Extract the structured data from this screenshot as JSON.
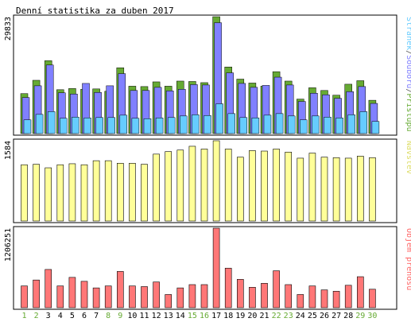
{
  "chart_data": [
    {
      "type": "bar",
      "title": "Denní statistika za duben 2017",
      "ymax_label": "29833",
      "legend": [
        {
          "text": "Stránek",
          "color": "#66ccff"
        },
        {
          "text": "/",
          "color": "#555555"
        },
        {
          "text": "Souborů",
          "color": "#8080ff"
        },
        {
          "text": "/",
          "color": "#555555"
        },
        {
          "text": "Přístupů",
          "color": "#66aa33"
        }
      ],
      "categories": [
        "1",
        "2",
        "3",
        "4",
        "5",
        "6",
        "7",
        "8",
        "9",
        "10",
        "11",
        "12",
        "13",
        "14",
        "15",
        "16",
        "17",
        "18",
        "19",
        "20",
        "21",
        "22",
        "23",
        "24",
        "25",
        "26",
        "27",
        "28",
        "29",
        "30"
      ],
      "weekend_days": [
        "1",
        "2",
        "8",
        "9",
        "15",
        "16",
        "22",
        "23",
        "29",
        "30"
      ],
      "ylim": [
        0,
        29833
      ],
      "series": [
        {
          "name": "Přístupů",
          "color": "#66aa33",
          "values": [
            10200,
            13600,
            18600,
            11200,
            11500,
            11300,
            11400,
            10800,
            16800,
            12100,
            12000,
            13200,
            12100,
            13400,
            13300,
            13000,
            29833,
            17000,
            13900,
            12900,
            12100,
            15800,
            13400,
            8800,
            11700,
            11000,
            9800,
            12600,
            13500,
            8500
          ]
        },
        {
          "name": "Souborů",
          "color": "#8080ff",
          "values": [
            9200,
            12200,
            17500,
            10400,
            10100,
            12800,
            10500,
            12200,
            15300,
            11000,
            11000,
            11800,
            10900,
            11300,
            12500,
            12400,
            28300,
            15500,
            12800,
            11800,
            12300,
            14400,
            12400,
            8200,
            10300,
            9900,
            9000,
            10700,
            12000,
            7700
          ]
        },
        {
          "name": "Stránek",
          "color": "#66ccff",
          "values": [
            3500,
            4900,
            5600,
            3900,
            4200,
            4000,
            4100,
            4100,
            4700,
            3900,
            3800,
            4000,
            4100,
            4500,
            4800,
            4600,
            7600,
            5100,
            4100,
            4000,
            4700,
            5100,
            4500,
            3500,
            4500,
            4200,
            4000,
            4800,
            5600,
            3100
          ]
        }
      ]
    },
    {
      "type": "bar",
      "ymax_label": "1584",
      "legend": [
        {
          "text": "Návštěv",
          "color": "#dddd66"
        }
      ],
      "categories": [
        "1",
        "2",
        "3",
        "4",
        "5",
        "6",
        "7",
        "8",
        "9",
        "10",
        "11",
        "12",
        "13",
        "14",
        "15",
        "16",
        "17",
        "18",
        "19",
        "20",
        "21",
        "22",
        "23",
        "24",
        "25",
        "26",
        "27",
        "28",
        "29",
        "30"
      ],
      "ylim": [
        0,
        1584
      ],
      "series": [
        {
          "name": "Návštěv",
          "color": "#ffff99",
          "values": [
            1110,
            1120,
            1050,
            1110,
            1130,
            1110,
            1190,
            1190,
            1140,
            1140,
            1120,
            1320,
            1370,
            1400,
            1475,
            1420,
            1584,
            1420,
            1260,
            1390,
            1380,
            1420,
            1360,
            1240,
            1340,
            1260,
            1250,
            1240,
            1280,
            1250
          ]
        }
      ]
    },
    {
      "type": "bar",
      "ymax_label": "1206251",
      "legend": [
        {
          "text": "Objem přenosu",
          "color": "#ff6666"
        }
      ],
      "categories": [
        "1",
        "2",
        "3",
        "4",
        "5",
        "6",
        "7",
        "8",
        "9",
        "10",
        "11",
        "12",
        "13",
        "14",
        "15",
        "16",
        "17",
        "18",
        "19",
        "20",
        "21",
        "22",
        "23",
        "24",
        "25",
        "26",
        "27",
        "28",
        "29",
        "30"
      ],
      "ylim": [
        0,
        1206251
      ],
      "series": [
        {
          "name": "Objem přenosu",
          "color": "#ff7777",
          "values": [
            330000,
            420000,
            580000,
            330000,
            460000,
            400000,
            300000,
            330000,
            550000,
            330000,
            320000,
            390000,
            200000,
            300000,
            350000,
            350000,
            1206251,
            600000,
            430000,
            310000,
            370000,
            560000,
            350000,
            200000,
            330000,
            270000,
            250000,
            340000,
            470000,
            280000
          ]
        }
      ]
    }
  ],
  "colors": {
    "panel_border": "#000000",
    "weekday_label": "#000000",
    "weekend_label": "#66aa33",
    "bar_outline": "#000000"
  }
}
